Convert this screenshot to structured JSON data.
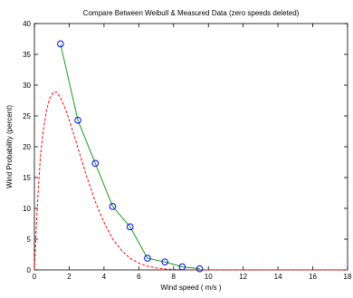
{
  "chart_data": {
    "type": "line",
    "title": "Compare Between Weibull & Measured Data (zero speeds deleted)",
    "xlabel": "Wind speed ( m/s )",
    "ylabel": "Wind Probability (percent)",
    "xlim": [
      0,
      18
    ],
    "ylim": [
      0,
      40
    ],
    "xticks": [
      "0",
      "2",
      "4",
      "6",
      "8",
      "10",
      "12",
      "14",
      "16",
      "18"
    ],
    "yticks": [
      "0",
      "5",
      "10",
      "15",
      "20",
      "25",
      "30",
      "35",
      "40"
    ],
    "grid": false,
    "legend": "none",
    "series": [
      {
        "style": "measured",
        "color": "#1a9a1a",
        "marker": "circle",
        "marker_color": "#0000ff",
        "x": [
          1.5,
          2.5,
          3.5,
          4.5,
          5.5,
          6.5,
          7.5,
          8.5,
          9.5
        ],
        "y": [
          36.7,
          24.3,
          17.3,
          10.3,
          7.0,
          1.9,
          1.3,
          0.5,
          0.2
        ]
      },
      {
        "style": "weibull",
        "color": "#ff0000",
        "dash": "dashed",
        "x": [
          0,
          0.1,
          0.2,
          0.35,
          0.5,
          0.7,
          0.9,
          1.1,
          1.3,
          1.5,
          1.8,
          2.1,
          2.5,
          3.0,
          3.5,
          4.0,
          4.5,
          5.0,
          5.5,
          6.0,
          6.5,
          7.0,
          7.5,
          8.0,
          8.5,
          9.0,
          9.5,
          10.0,
          11.0,
          12.0,
          14.0,
          16.0,
          18.0
        ],
        "y": [
          0,
          6.5,
          12.0,
          18.5,
          22.5,
          26.0,
          28.0,
          28.9,
          28.8,
          28.0,
          26.0,
          23.5,
          19.8,
          15.2,
          11.1,
          7.7,
          5.0,
          3.2,
          1.9,
          1.1,
          0.6,
          0.33,
          0.17,
          0.08,
          0.04,
          0.02,
          0.01,
          0.0,
          0.0,
          0.0,
          0.0,
          0.0,
          0.0
        ]
      }
    ]
  }
}
